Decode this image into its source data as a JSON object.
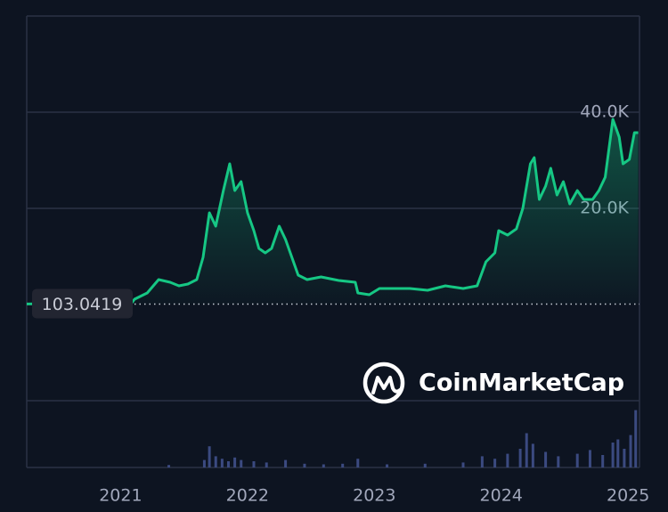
{
  "chart_data": {
    "type": "line",
    "color": "#16c784",
    "xlim": [
      2020.26,
      2025.09
    ],
    "xticks": [
      2021,
      2022,
      2023,
      2024,
      2025
    ],
    "ylim": [
      -20000,
      60000
    ],
    "yticks": [
      {
        "value": 20000,
        "label": "20.0K"
      },
      {
        "value": 40000,
        "label": "40.0K"
      }
    ],
    "reference_line": 103.0419,
    "watermark": "CoinMarketCap",
    "x": [
      2020.26,
      2021.09,
      2021.11,
      2021.21,
      2021.3,
      2021.39,
      2021.46,
      2021.53,
      2021.6,
      2021.65,
      2021.7,
      2021.75,
      2021.81,
      2021.86,
      2021.9,
      2021.95,
      2022.0,
      2022.05,
      2022.09,
      2022.14,
      2022.19,
      2022.25,
      2022.3,
      2022.35,
      2022.4,
      2022.47,
      2022.58,
      2022.72,
      2022.85,
      2022.87,
      2022.96,
      2023.04,
      2023.14,
      2023.28,
      2023.42,
      2023.56,
      2023.7,
      2023.81,
      2023.88,
      2023.95,
      2023.98,
      2024.05,
      2024.12,
      2024.17,
      2024.23,
      2024.26,
      2024.3,
      2024.35,
      2024.39,
      2024.44,
      2024.49,
      2024.54,
      2024.6,
      2024.65,
      2024.72,
      2024.77,
      2024.82,
      2024.88,
      2024.93,
      2024.96,
      2025.01,
      2025.05,
      2025.08
    ],
    "values": [
      103,
      400,
      1110,
      2410,
      5190,
      4630,
      3890,
      4260,
      5190,
      9820,
      19080,
      16300,
      23710,
      29260,
      23710,
      25560,
      19080,
      15370,
      11670,
      10740,
      11670,
      16300,
      13520,
      9820,
      6110,
      5190,
      5740,
      5000,
      4630,
      2410,
      2040,
      3330,
      3330,
      3330,
      2960,
      3890,
      3330,
      3890,
      8890,
      10740,
      15370,
      14450,
      15740,
      20000,
      29260,
      30560,
      21850,
      24630,
      28340,
      22780,
      25560,
      20930,
      23710,
      21850,
      21850,
      23710,
      26480,
      38520,
      34820,
      29260,
      30190,
      35740,
      35740
    ],
    "volume": {
      "color": "#3b4a80",
      "ylim": [
        0,
        100
      ],
      "x": [
        2021.38,
        2021.66,
        2021.7,
        2021.75,
        2021.8,
        2021.85,
        2021.9,
        2021.95,
        2022.05,
        2022.15,
        2022.3,
        2022.45,
        2022.6,
        2022.75,
        2022.87,
        2023.1,
        2023.4,
        2023.7,
        2023.85,
        2023.95,
        2024.05,
        2024.15,
        2024.2,
        2024.25,
        2024.35,
        2024.45,
        2024.6,
        2024.7,
        2024.8,
        2024.88,
        2024.92,
        2024.97,
        2025.02,
        2025.06
      ],
      "values": [
        4,
        12,
        34,
        18,
        14,
        10,
        16,
        12,
        10,
        8,
        12,
        6,
        5,
        6,
        14,
        5,
        6,
        8,
        18,
        14,
        22,
        30,
        55,
        38,
        25,
        18,
        22,
        28,
        20,
        40,
        45,
        30,
        52,
        92
      ]
    }
  }
}
